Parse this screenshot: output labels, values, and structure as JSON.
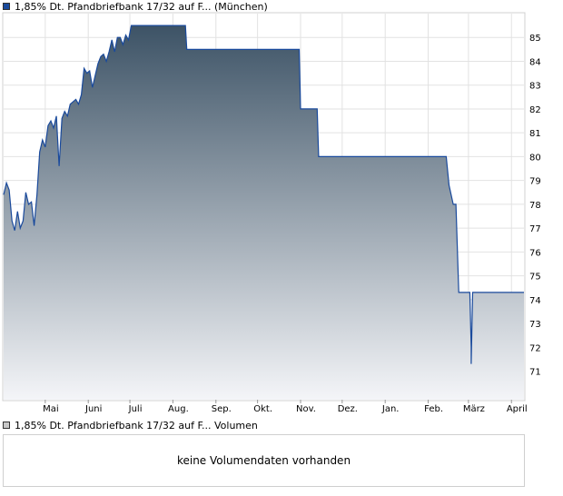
{
  "legend": {
    "price_label": "1,85% Dt. Pfandbriefbank 17/32 auf F... (München)",
    "price_color": "#1a4a9c",
    "volume_label": "1,85% Dt. Pfandbriefbank 17/32 auf F... Volumen",
    "volume_color": "#c8c8c8"
  },
  "volume": {
    "empty_text": "keine Volumendaten vorhanden"
  },
  "chart_data": {
    "type": "area",
    "title": "",
    "xlabel": "",
    "ylabel": "",
    "ylim": [
      69.8,
      86
    ],
    "grid": true,
    "x_ticks": [
      "Mai",
      "Juni",
      "Juli",
      "Aug.",
      "Sep.",
      "Okt.",
      "Nov.",
      "Dez.",
      "Jan.",
      "Feb.",
      "März",
      "April"
    ],
    "y_ticks": [
      71,
      72,
      73,
      74,
      75,
      76,
      77,
      78,
      79,
      80,
      81,
      82,
      83,
      84,
      85
    ],
    "colors": {
      "line": "#1a4a9c",
      "fill_top": "#3d5366",
      "fill_bottom": "#f4f5f8"
    },
    "series": [
      {
        "x": [
          "2023-04-01",
          "2023-04-03",
          "2023-04-05",
          "2023-04-07",
          "2023-04-09",
          "2023-04-11",
          "2023-04-13",
          "2023-04-15",
          "2023-04-17",
          "2023-04-19",
          "2023-04-21",
          "2023-04-23",
          "2023-04-25",
          "2023-04-27",
          "2023-04-29",
          "2023-05-01",
          "2023-05-03",
          "2023-05-05",
          "2023-05-07",
          "2023-05-09",
          "2023-05-11",
          "2023-05-13",
          "2023-05-15",
          "2023-05-17",
          "2023-05-19",
          "2023-05-21",
          "2023-05-23",
          "2023-05-25",
          "2023-05-27",
          "2023-05-29",
          "2023-05-31",
          "2023-06-02",
          "2023-06-04",
          "2023-06-06",
          "2023-06-08",
          "2023-06-10",
          "2023-06-12",
          "2023-06-14",
          "2023-06-16",
          "2023-06-18",
          "2023-06-20",
          "2023-06-22",
          "2023-06-24",
          "2023-06-26",
          "2023-06-28",
          "2023-06-30",
          "2023-07-02",
          "2023-07-04",
          "2023-07-06",
          "2023-07-08",
          "2023-07-10",
          "2023-07-12",
          "2023-07-14",
          "2023-07-17",
          "2023-08-10",
          "2023-08-11",
          "2023-10-31",
          "2023-11-01",
          "2023-11-13",
          "2023-11-14",
          "2024-02-14",
          "2024-02-16",
          "2024-02-19",
          "2024-02-21",
          "2024-02-23",
          "2024-02-25",
          "2024-03-02",
          "2024-03-03",
          "2024-03-03",
          "2024-03-04",
          "2024-03-05",
          "2024-04-10"
        ],
        "values": [
          78.4,
          78.9,
          78.6,
          77.3,
          76.9,
          77.7,
          77.0,
          77.3,
          78.5,
          78.0,
          78.1,
          77.1,
          78.4,
          80.2,
          80.7,
          80.4,
          81.3,
          81.5,
          81.2,
          81.7,
          79.6,
          81.6,
          81.9,
          81.7,
          82.2,
          82.3,
          82.4,
          82.2,
          82.6,
          83.7,
          83.5,
          83.6,
          82.9,
          83.4,
          83.9,
          84.2,
          84.3,
          84.0,
          84.4,
          84.9,
          84.4,
          85.0,
          85.0,
          84.7,
          85.1,
          84.9,
          85.5,
          85.5,
          85.5,
          85.5,
          85.5,
          85.5,
          85.5,
          85.5,
          85.5,
          84.5,
          84.5,
          82.0,
          82.0,
          80.0,
          80.0,
          78.8,
          78.0,
          78.0,
          74.3,
          74.3,
          74.3,
          72.0,
          71.3,
          74.3,
          74.3,
          74.3
        ]
      }
    ]
  }
}
